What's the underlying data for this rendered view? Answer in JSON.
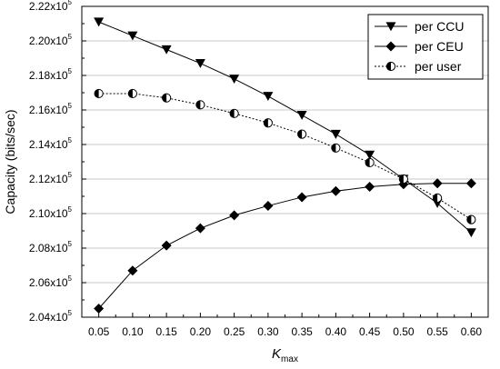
{
  "chart_data": {
    "type": "line",
    "title": "",
    "xlabel": {
      "base": "K",
      "sub": "max"
    },
    "ylabel": "Capacity (bits/sec)",
    "x": [
      0.05,
      0.1,
      0.15,
      0.2,
      0.25,
      0.3,
      0.35,
      0.4,
      0.45,
      0.5,
      0.55,
      0.6
    ],
    "x_tick_labels": [
      "0.05",
      "0.10",
      "0.15",
      "0.20",
      "0.25",
      "0.30",
      "0.35",
      "0.40",
      "0.45",
      "0.50",
      "0.55",
      "0.60"
    ],
    "xlim": [
      0.025,
      0.625
    ],
    "ylim": [
      204000,
      222000
    ],
    "y_ticks": [
      {
        "value": 204000,
        "mantissa": "2.04x10",
        "exp": "5"
      },
      {
        "value": 206000,
        "mantissa": "2.06x10",
        "exp": "5"
      },
      {
        "value": 208000,
        "mantissa": "2.08x10",
        "exp": "5"
      },
      {
        "value": 210000,
        "mantissa": "2.10x10",
        "exp": "5"
      },
      {
        "value": 212000,
        "mantissa": "2.12x10",
        "exp": "5"
      },
      {
        "value": 214000,
        "mantissa": "2.14x10",
        "exp": "5"
      },
      {
        "value": 216000,
        "mantissa": "2.16x10",
        "exp": "5"
      },
      {
        "value": 218000,
        "mantissa": "2.18x10",
        "exp": "5"
      },
      {
        "value": 220000,
        "mantissa": "2.20x10",
        "exp": "5"
      },
      {
        "value": 222000,
        "mantissa": "2.22x10",
        "exp": "5"
      }
    ],
    "grid": "horizontal",
    "legend_position": "top-right",
    "series": [
      {
        "name": "per CCU",
        "marker": "triangle-down",
        "line": "solid",
        "values": [
          221100,
          220300,
          219500,
          218700,
          217800,
          216800,
          215700,
          214600,
          213400,
          212000,
          210600,
          208900
        ]
      },
      {
        "name": "per CEU",
        "marker": "diamond",
        "line": "solid",
        "values": [
          204500,
          206700,
          208150,
          209150,
          209900,
          210450,
          210950,
          211300,
          211550,
          211700,
          211750,
          211750
        ]
      },
      {
        "name": "per user",
        "marker": "half-circle",
        "line": "dotted",
        "values": [
          216950,
          216950,
          216700,
          216300,
          215800,
          215250,
          214600,
          213800,
          212950,
          212000,
          210900,
          209650
        ]
      }
    ]
  }
}
